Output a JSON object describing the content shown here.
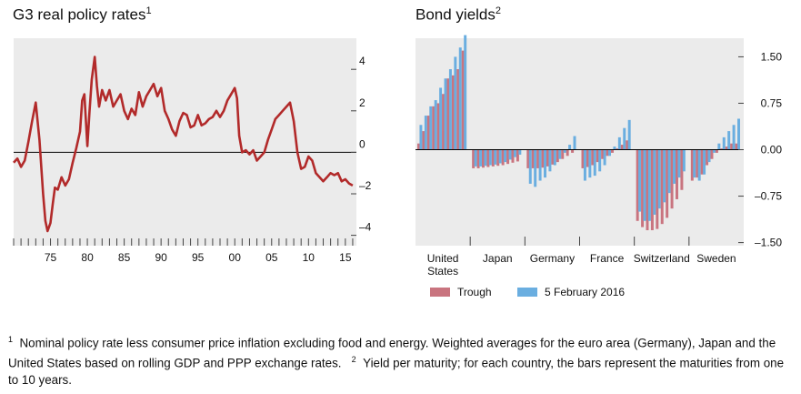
{
  "chart_data": [
    {
      "type": "line",
      "title": "G3 real policy rates",
      "title_note": "1",
      "x_tick_labels": [
        "75",
        "80",
        "85",
        "90",
        "95",
        "00",
        "05",
        "10",
        "15"
      ],
      "x_tick_years": [
        1975,
        1980,
        1985,
        1990,
        1995,
        2000,
        2005,
        2010,
        2015
      ],
      "y_tick_labels": [
        "4",
        "2",
        "0",
        "–2",
        "–4"
      ],
      "y_tick_values": [
        4,
        2,
        0,
        -2,
        -4
      ],
      "xlim": [
        1970,
        2016.5
      ],
      "ylim": [
        -4.5,
        5.5
      ],
      "grid": false,
      "color": "#b22a2a",
      "series": [
        {
          "x": [
            1970,
            1970.5,
            1971,
            1971.5,
            1972,
            1972.5,
            1973,
            1973.5,
            1974,
            1974.3,
            1974.6,
            1975,
            1975.3,
            1975.6,
            1976,
            1976.5,
            1977,
            1977.5,
            1978,
            1978.5,
            1979,
            1979.3,
            1979.6,
            1980,
            1980.3,
            1980.6,
            1981,
            1981.3,
            1981.6,
            1982,
            1982.5,
            1983,
            1983.5,
            1984,
            1984.5,
            1985,
            1985.5,
            1986,
            1986.5,
            1987,
            1987.5,
            1988,
            1988.5,
            1989,
            1989.5,
            1990,
            1990.5,
            1991,
            1991.5,
            1992,
            1992.5,
            1993,
            1993.5,
            1994,
            1994.5,
            1995,
            1995.5,
            1996,
            1996.5,
            1997,
            1997.5,
            1998,
            1998.5,
            1999,
            1999.5,
            2000,
            2000.3,
            2000.6,
            2001,
            2001.5,
            2002,
            2002.5,
            2003,
            2003.5,
            2004,
            2004.5,
            2005,
            2005.5,
            2006,
            2006.5,
            2007,
            2007.5,
            2008,
            2008.5,
            2009,
            2009.5,
            2010,
            2010.5,
            2011,
            2011.5,
            2012,
            2012.5,
            2013,
            2013.5,
            2014,
            2014.5,
            2015,
            2015.5,
            2016
          ],
          "y": [
            -0.5,
            -0.3,
            -0.7,
            -0.4,
            0.5,
            1.5,
            2.4,
            0.6,
            -2.0,
            -3.3,
            -3.8,
            -3.4,
            -2.5,
            -1.7,
            -1.8,
            -1.2,
            -1.6,
            -1.3,
            -0.5,
            0.2,
            1.0,
            2.5,
            2.8,
            0.3,
            2.0,
            3.5,
            4.6,
            3.2,
            2.2,
            3.0,
            2.5,
            3.0,
            2.2,
            2.5,
            2.8,
            2.0,
            1.6,
            2.1,
            1.8,
            2.9,
            2.2,
            2.7,
            3.0,
            3.3,
            2.7,
            3.1,
            2.0,
            1.6,
            1.1,
            0.8,
            1.5,
            1.9,
            1.8,
            1.2,
            1.3,
            1.8,
            1.3,
            1.4,
            1.6,
            1.7,
            2.0,
            1.7,
            2.0,
            2.5,
            2.8,
            3.1,
            2.6,
            0.8,
            0.0,
            0.1,
            -0.1,
            0.1,
            -0.4,
            -0.2,
            0.0,
            0.6,
            1.1,
            1.6,
            1.8,
            2.0,
            2.2,
            2.4,
            1.5,
            0.0,
            -0.8,
            -0.7,
            -0.2,
            -0.4,
            -1.0,
            -1.2,
            -1.4,
            -1.2,
            -1.0,
            -1.1,
            -1.0,
            -1.4,
            -1.3,
            -1.5,
            -1.6
          ]
        }
      ]
    },
    {
      "type": "bar",
      "title": "Bond yields",
      "title_note": "2",
      "categories": [
        "United States",
        "Japan",
        "Germany",
        "France",
        "Switzerland",
        "Sweden"
      ],
      "category_labels": [
        [
          "United",
          "States"
        ],
        [
          "Japan"
        ],
        [
          "Germany"
        ],
        [
          "France"
        ],
        [
          "Switzerland"
        ],
        [
          "Sweden"
        ]
      ],
      "maturities": [
        1,
        2,
        3,
        4,
        5,
        6,
        7,
        8,
        9,
        10
      ],
      "y_tick_labels": [
        "1.50",
        "0.75",
        "0.00",
        "–0.75",
        "–1.50"
      ],
      "y_tick_values": [
        1.5,
        0.75,
        0,
        -0.75,
        -1.5
      ],
      "ylim": [
        -1.55,
        1.8
      ],
      "legend": {
        "position": "bottom",
        "items": [
          {
            "name": "Trough",
            "color": "#c9747f"
          },
          {
            "name": "5 February 2016",
            "color": "#6aaee0"
          }
        ]
      },
      "series": [
        {
          "name": "Trough",
          "color": "#c9747f",
          "values": [
            [
              0.1,
              0.3,
              0.55,
              0.7,
              0.75,
              0.9,
              1.15,
              1.2,
              1.3,
              1.6
            ],
            [
              -0.3,
              -0.3,
              -0.29,
              -0.28,
              -0.27,
              -0.26,
              -0.25,
              -0.23,
              -0.21,
              -0.19
            ],
            [
              -0.3,
              -0.3,
              -0.3,
              -0.29,
              -0.27,
              -0.24,
              -0.2,
              -0.15,
              -0.1,
              -0.05
            ],
            [
              -0.3,
              -0.28,
              -0.25,
              -0.2,
              -0.15,
              -0.1,
              -0.05,
              0.02,
              0.08,
              0.15
            ],
            [
              -1.15,
              -1.25,
              -1.3,
              -1.3,
              -1.28,
              -1.2,
              -1.1,
              -0.95,
              -0.8,
              -0.65
            ],
            [
              -0.5,
              -0.45,
              -0.4,
              -0.25,
              -0.15,
              -0.05,
              0.02,
              0.05,
              0.1,
              0.1
            ]
          ]
        },
        {
          "name": "5 February 2016",
          "color": "#6aaee0",
          "values": [
            [
              0.4,
              0.55,
              0.7,
              0.8,
              1.0,
              1.15,
              1.3,
              1.5,
              1.65,
              1.85
            ],
            [
              -0.27,
              -0.27,
              -0.26,
              -0.25,
              -0.24,
              -0.22,
              -0.2,
              -0.16,
              -0.12,
              -0.08
            ],
            [
              -0.55,
              -0.6,
              -0.5,
              -0.45,
              -0.35,
              -0.25,
              -0.15,
              -0.05,
              0.08,
              0.22
            ],
            [
              -0.5,
              -0.45,
              -0.42,
              -0.35,
              -0.25,
              -0.1,
              0.05,
              0.2,
              0.35,
              0.48
            ],
            [
              -1.0,
              -1.15,
              -1.15,
              -1.05,
              -0.95,
              -0.85,
              -0.7,
              -0.55,
              -0.45,
              -0.35
            ],
            [
              -0.45,
              -0.5,
              -0.4,
              -0.2,
              -0.05,
              0.1,
              0.2,
              0.3,
              0.4,
              0.5
            ]
          ]
        }
      ]
    }
  ],
  "footnotes": {
    "note1_marker": "1",
    "note1_text": "Nominal policy rate less consumer price inflation excluding food and energy. Weighted averages for the euro area (Germany), Japan and the United States based on rolling GDP and PPP exchange rates.",
    "note2_marker": "2",
    "note2_text": "Yield per maturity; for each country, the bars represent the maturities from one to 10 years."
  }
}
